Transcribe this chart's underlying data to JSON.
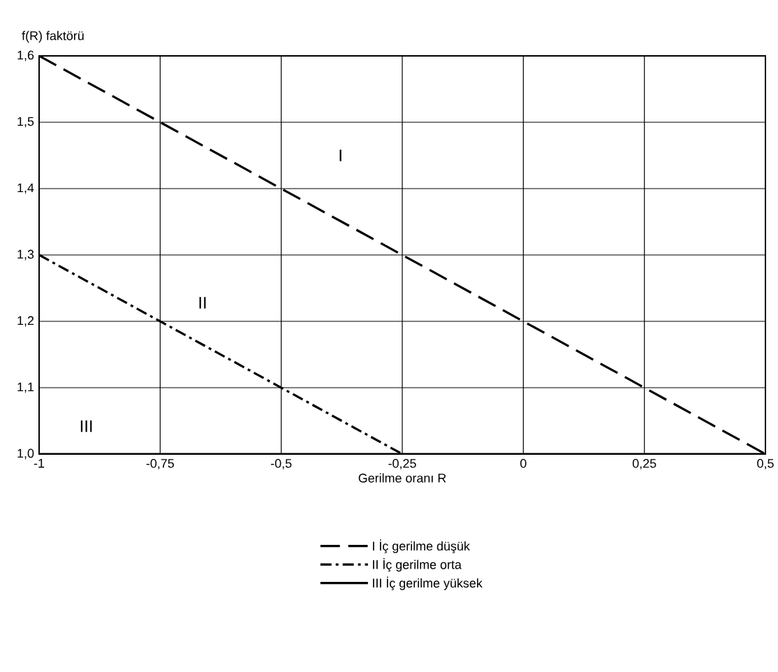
{
  "chart_data": {
    "type": "line",
    "xlabel": "Gerilme oranı R",
    "ylabel": "f(R) faktörü",
    "xlim": [
      -1,
      0.5
    ],
    "ylim": [
      1.0,
      1.6
    ],
    "xticks": [
      -1,
      {
        "value": -0.75,
        "label": "-0,75"
      },
      {
        "value": -0.5,
        "label": "-0,5"
      },
      {
        "value": -0.25,
        "label": "-0,25"
      },
      0,
      {
        "value": 0.25,
        "label": "0,25"
      },
      {
        "value": 0.5,
        "label": "0,5"
      }
    ],
    "yticks": [
      {
        "value": 1.0,
        "label": "1,0"
      },
      {
        "value": 1.1,
        "label": "1,1"
      },
      {
        "value": 1.2,
        "label": "1,2"
      },
      {
        "value": 1.3,
        "label": "1,3"
      },
      {
        "value": 1.4,
        "label": "1,4"
      },
      {
        "value": 1.5,
        "label": "1,5"
      },
      {
        "value": 1.6,
        "label": "1,6"
      }
    ],
    "grid": true,
    "legend": "bottom",
    "series": [
      {
        "name": "I İç gerilme düşük",
        "color": "#000000",
        "line_style": "dashed",
        "x": [
          -1,
          0.5
        ],
        "values": [
          1.6,
          1.0
        ]
      },
      {
        "name": "II İç gerilme orta",
        "color": "#000000",
        "line_style": "dashdot",
        "x": [
          -1,
          -0.25
        ],
        "values": [
          1.3,
          1.0
        ]
      },
      {
        "name": "III İç gerilme yüksek",
        "color": "#000000",
        "line_style": "solid",
        "x": [
          -1,
          0.5
        ],
        "values": [
          1.0,
          1.0
        ]
      }
    ],
    "annotations": [
      "I",
      "II",
      "III"
    ]
  }
}
